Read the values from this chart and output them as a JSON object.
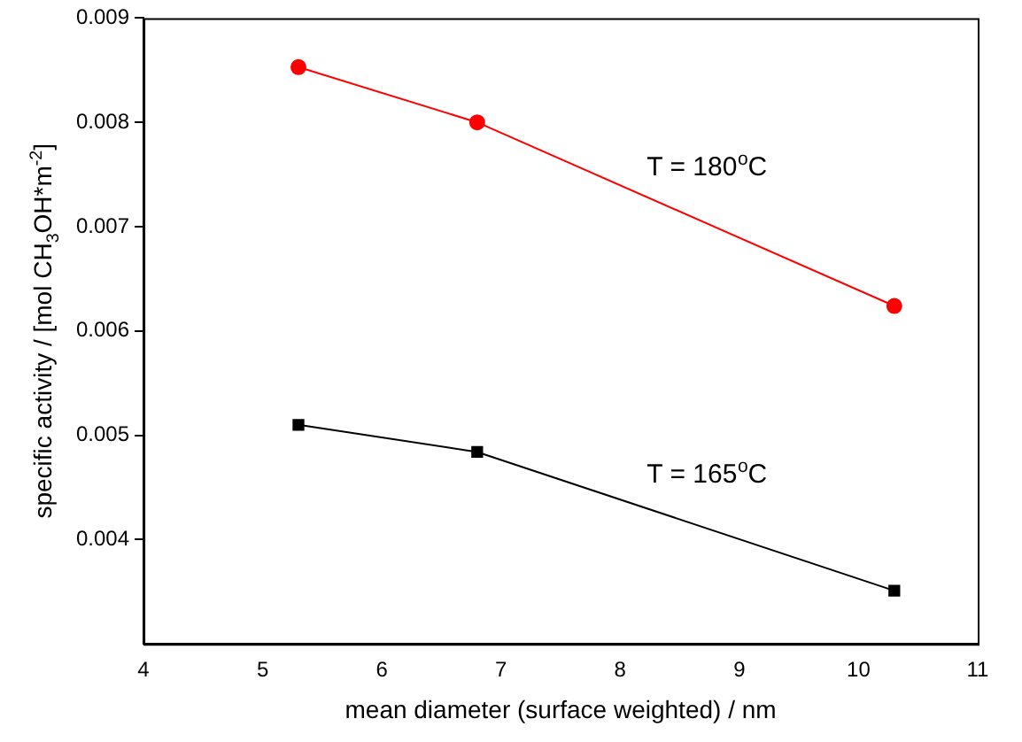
{
  "chart_data": {
    "type": "line",
    "xlabel": "mean diameter (surface weighted) / nm",
    "ylabel": "specific activity / [mol CH$_{3}$OH*m$^{-2}$]",
    "x": [
      5.3,
      6.8,
      10.3
    ],
    "series": [
      {
        "name": "T = 180$^{o}$C",
        "color": "#ff0000",
        "marker": "circle",
        "values": [
          0.00853,
          0.008,
          0.00624
        ]
      },
      {
        "name": "T = 165$^{o}$C",
        "color": "#000000",
        "marker": "square",
        "values": [
          0.0051,
          0.00484,
          0.00351
        ]
      }
    ],
    "xlim": [
      4,
      11
    ],
    "xticks": [
      4,
      5,
      6,
      7,
      8,
      9,
      10,
      11
    ],
    "ylim": [
      0.003,
      0.009
    ],
    "yticks": [
      0.004,
      0.005,
      0.006,
      0.007,
      0.008,
      0.009
    ],
    "grid": false,
    "legend": false,
    "line_style": "solid"
  }
}
